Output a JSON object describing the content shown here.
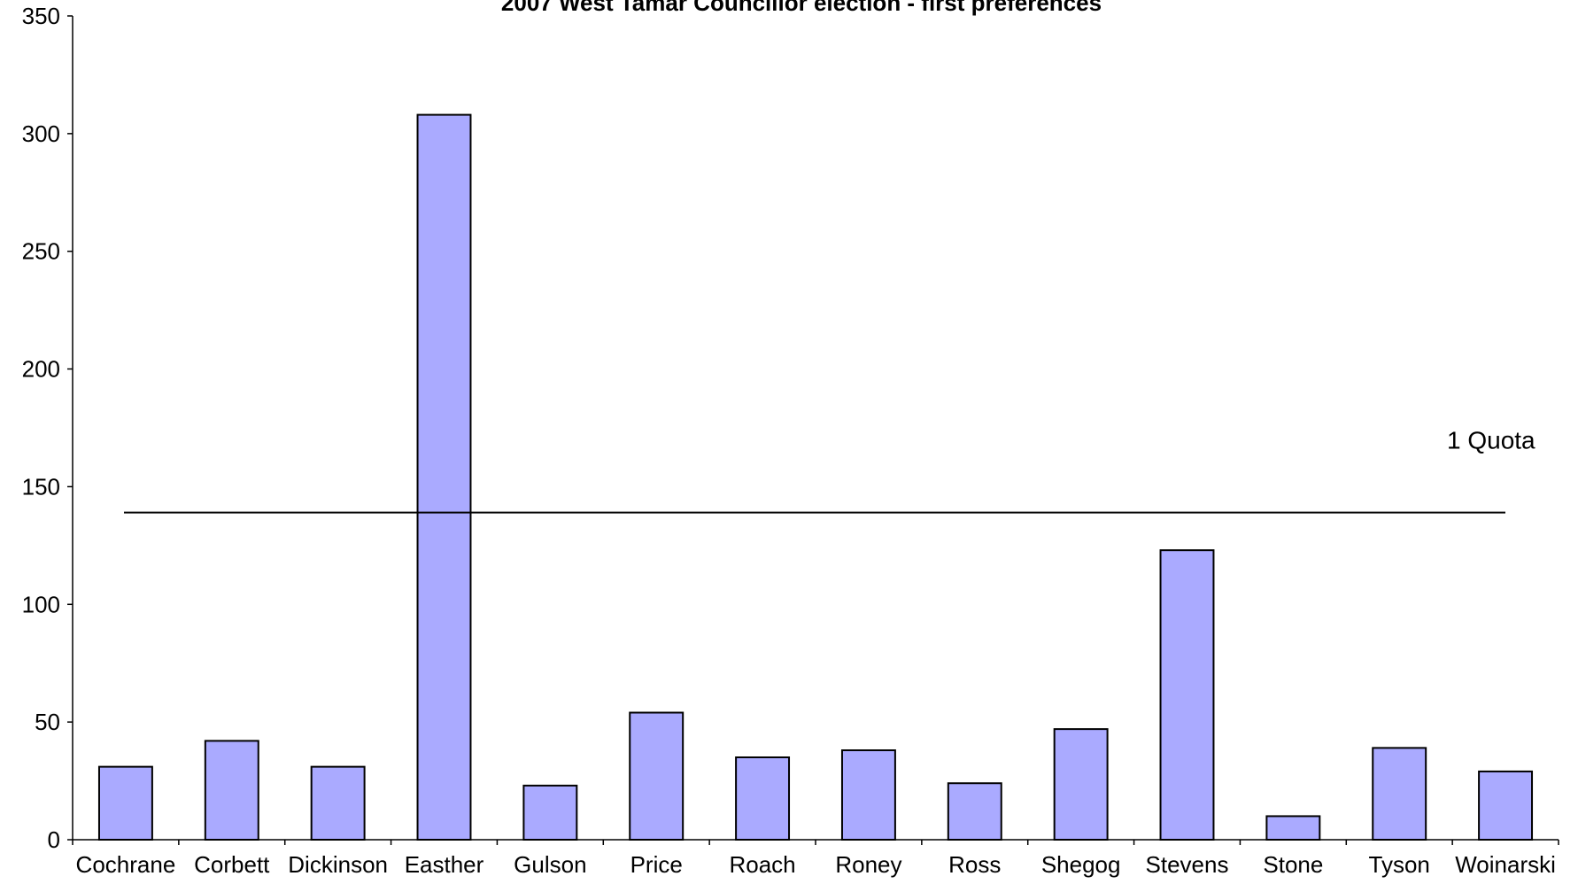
{
  "chart_data": {
    "type": "bar",
    "title": "2007 West Tamar Councillor election - first preferences",
    "xlabel": "",
    "ylabel": "",
    "ylim": [
      0,
      350
    ],
    "yticks": [
      0,
      50,
      100,
      150,
      200,
      250,
      300,
      350
    ],
    "categories": [
      "Cochrane",
      "Corbett",
      "Dickinson",
      "Easther",
      "Gulson",
      "Price",
      "Roach",
      "Roney",
      "Ross",
      "Shegog",
      "Stevens",
      "Stone",
      "Tyson",
      "Woinarski"
    ],
    "values": [
      31,
      42,
      31,
      308,
      23,
      54,
      35,
      38,
      24,
      47,
      123,
      10,
      39,
      29
    ],
    "bar_color": "#aaaaff",
    "grid": false,
    "legend": "none",
    "reference_line": {
      "label": "1 Quota",
      "value": 139
    }
  }
}
